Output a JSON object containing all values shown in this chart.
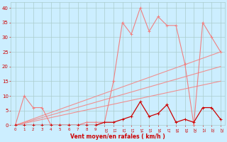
{
  "x": [
    0,
    1,
    2,
    3,
    4,
    5,
    6,
    7,
    8,
    9,
    10,
    11,
    12,
    13,
    14,
    15,
    16,
    17,
    18,
    19,
    20,
    21,
    22,
    23
  ],
  "mean_wind": [
    0,
    0,
    0,
    0,
    0,
    0,
    0,
    0,
    0,
    0,
    1,
    1,
    2,
    3,
    8,
    3,
    4,
    7,
    1,
    2,
    1,
    6,
    6,
    2
  ],
  "gust_wind": [
    0,
    10,
    6,
    6,
    0,
    0,
    0,
    0,
    1,
    1,
    1,
    15,
    35,
    31,
    40,
    32,
    37,
    34,
    34,
    21,
    0,
    35,
    30,
    25
  ],
  "ref_line1_x": [
    0,
    23
  ],
  "ref_line1_y": [
    0,
    25
  ],
  "ref_line2_x": [
    0,
    23
  ],
  "ref_line2_y": [
    0,
    20
  ],
  "ref_line3_x": [
    0,
    23
  ],
  "ref_line3_y": [
    0,
    15
  ],
  "color_gust": "#f08080",
  "color_mean": "#cc0000",
  "color_ref": "#f09090",
  "bg_color": "#cceeff",
  "grid_color": "#aacccc",
  "xlabel": "Vent moyen/en rafales ( km/h )",
  "xlabel_color": "#cc0000",
  "tick_color": "#cc0000",
  "ylim": [
    0,
    42
  ],
  "xlim": [
    -0.5,
    23.5
  ]
}
